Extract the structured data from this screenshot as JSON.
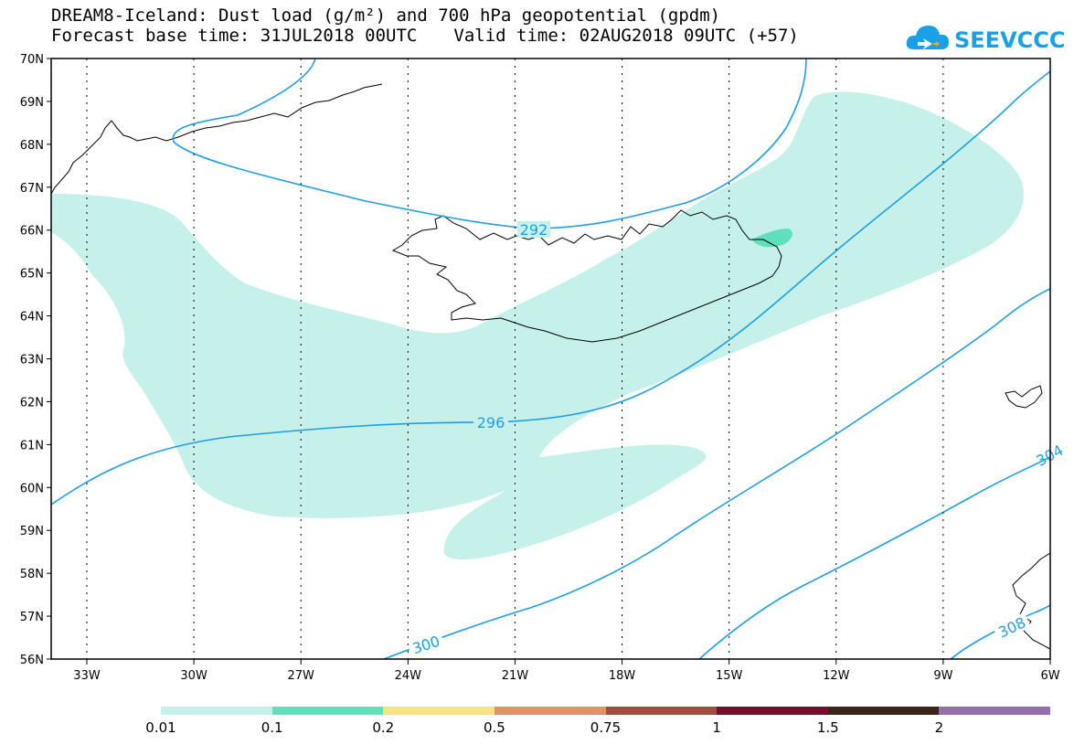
{
  "header": {
    "title_line1": "DREAM8-Iceland: Dust load (g/m²) and 700 hPa geopotential (gpdm)",
    "base_time_label": "Forecast base time: 31JUL2018 00UTC",
    "valid_time_label": "Valid time: 02AUG2018 09UTC (+57)"
  },
  "logo": {
    "text": "SEEVCCC",
    "color": "#1aa0e6"
  },
  "map": {
    "lat_labels": [
      "70N",
      "69N",
      "68N",
      "67N",
      "66N",
      "65N",
      "64N",
      "63N",
      "62N",
      "61N",
      "60N",
      "59N",
      "58N",
      "57N",
      "56N"
    ],
    "lon_labels": [
      "33W",
      "30W",
      "27W",
      "24W",
      "21W",
      "18W",
      "15W",
      "12W",
      "9W",
      "6W"
    ],
    "contour_labels": [
      "292",
      "296",
      "300",
      "304",
      "308"
    ],
    "contour_color": "#1e9ee6",
    "dust_light_color": "#c5f1ea",
    "dust_medium_color": "#5fe0bd"
  },
  "colorbar": {
    "labels": [
      "0.01",
      "0.1",
      "0.2",
      "0.5",
      "0.75",
      "1",
      "1.5",
      "2"
    ],
    "colors": [
      "#c5f1ea",
      "#5fe0bd",
      "#f5e57b",
      "#e0906a",
      "#a54b41",
      "#7a0d2f",
      "#3b2418",
      "#9370a8"
    ]
  }
}
